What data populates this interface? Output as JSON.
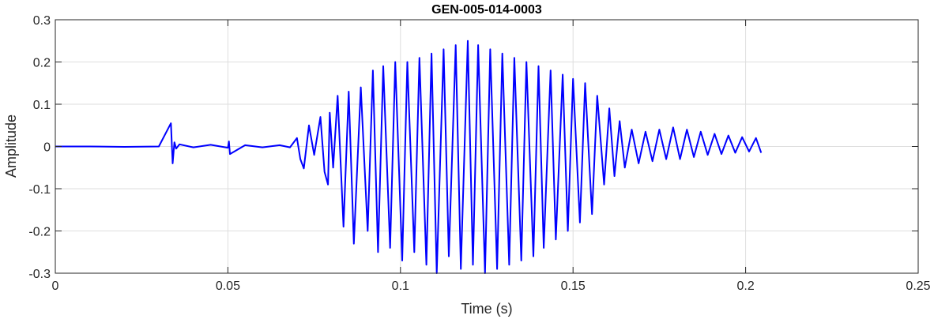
{
  "chart_data": {
    "type": "line",
    "title": "GEN-005-014-0003",
    "xlabel": "Time (s)",
    "ylabel": "Amplitude",
    "xlim": [
      0,
      0.25
    ],
    "ylim": [
      -0.3,
      0.3
    ],
    "xticks": [
      0,
      0.05,
      0.1,
      0.15,
      0.2,
      0.25
    ],
    "xtick_labels": [
      "0",
      "0.05",
      "0.1",
      "0.15",
      "0.2",
      "0.25"
    ],
    "yticks": [
      0.3,
      0.2,
      0.1,
      0,
      -0.1,
      -0.2,
      -0.3
    ],
    "ytick_labels": [
      "0.3",
      "0.2",
      "0.1",
      "0",
      "-0.1",
      "-0.2",
      "-0.3"
    ],
    "grid": true,
    "colors": {
      "line": "#0000ff",
      "grid": "#dedede",
      "axis": "#262626"
    },
    "series": [
      {
        "x": [
          0,
          0.01,
          0.02,
          0.03,
          0.0335,
          0.034,
          0.0345,
          0.035,
          0.036,
          0.04,
          0.045,
          0.05,
          0.0503,
          0.0506,
          0.055,
          0.06,
          0.065,
          0.068,
          0.07,
          0.071,
          0.072,
          0.0735,
          0.075,
          0.0768,
          0.078,
          0.079,
          0.0795,
          0.0805,
          0.0818,
          0.0835,
          0.085,
          0.0865,
          0.0885,
          0.0905,
          0.092,
          0.0935,
          0.095,
          0.097,
          0.0985,
          0.1005,
          0.102,
          0.104,
          0.1055,
          0.1075,
          0.109,
          0.1105,
          0.1125,
          0.114,
          0.116,
          0.1175,
          0.1195,
          0.121,
          0.1225,
          0.1245,
          0.126,
          0.128,
          0.1295,
          0.1315,
          0.133,
          0.135,
          0.1365,
          0.1385,
          0.14,
          0.1415,
          0.1435,
          0.145,
          0.147,
          0.1485,
          0.15,
          0.152,
          0.1535,
          0.1555,
          0.157,
          0.159,
          0.1605,
          0.162,
          0.1635,
          0.165,
          0.167,
          0.169,
          0.171,
          0.173,
          0.175,
          0.177,
          0.179,
          0.181,
          0.183,
          0.185,
          0.187,
          0.189,
          0.191,
          0.193,
          0.195,
          0.197,
          0.199,
          0.201,
          0.203,
          0.2045
        ],
        "y": [
          0,
          0,
          -0.001,
          0,
          0.055,
          -0.04,
          0.01,
          -0.005,
          0.005,
          -0.002,
          0.004,
          -0.003,
          0.012,
          -0.018,
          0.003,
          -0.002,
          0.003,
          -0.002,
          0.02,
          -0.03,
          -0.052,
          0.05,
          -0.02,
          0.07,
          -0.06,
          -0.09,
          0.08,
          -0.05,
          0.12,
          -0.19,
          0.13,
          -0.23,
          0.14,
          -0.2,
          0.18,
          -0.25,
          0.19,
          -0.24,
          0.2,
          -0.27,
          0.2,
          -0.25,
          0.21,
          -0.28,
          0.22,
          -0.3,
          0.23,
          -0.26,
          0.24,
          -0.29,
          0.25,
          -0.28,
          0.24,
          -0.3,
          0.23,
          -0.29,
          0.22,
          -0.28,
          0.21,
          -0.27,
          0.2,
          -0.26,
          0.19,
          -0.24,
          0.18,
          -0.22,
          0.17,
          -0.2,
          0.16,
          -0.18,
          0.15,
          -0.16,
          0.12,
          -0.09,
          0.09,
          -0.07,
          0.06,
          -0.05,
          0.04,
          -0.04,
          0.035,
          -0.035,
          0.04,
          -0.03,
          0.045,
          -0.03,
          0.04,
          -0.025,
          0.035,
          -0.02,
          0.03,
          -0.018,
          0.026,
          -0.015,
          0.022,
          -0.012,
          0.02,
          -0.015
        ]
      }
    ]
  }
}
